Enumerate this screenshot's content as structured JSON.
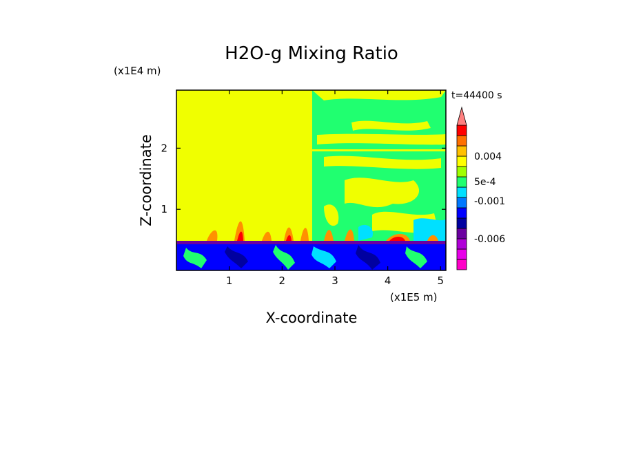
{
  "chart_data": {
    "type": "heatmap",
    "title": "H2O-g Mixing Ratio",
    "xlabel": "X-coordinate",
    "ylabel": "Z-coordinate",
    "x_scale_label": "(x1E5 m)",
    "y_scale_label": "(x1E4 m)",
    "time_label": "t=44400 s",
    "xlim": [
      0.0,
      5.1
    ],
    "ylim": [
      0.0,
      2.95
    ],
    "x_ticks": [
      1,
      2,
      3,
      4,
      5
    ],
    "y_ticks": [
      1,
      2
    ],
    "colorbar": {
      "levels": [
        {
          "color": "#ff00c8"
        },
        {
          "color": "#e800e8"
        },
        {
          "color": "#b000d8"
        },
        {
          "color": "#6a00a0"
        },
        {
          "color": "#0000a0"
        },
        {
          "color": "#0000ff"
        },
        {
          "color": "#0078ff"
        },
        {
          "color": "#00e0ff"
        },
        {
          "color": "#20ff70"
        },
        {
          "color": "#a0ff00"
        },
        {
          "color": "#ffff00"
        },
        {
          "color": "#ffc000"
        },
        {
          "color": "#ff7000"
        },
        {
          "color": "#ff0000"
        },
        {
          "color": "#ff8080"
        }
      ],
      "tick_labels": [
        "0.004",
        "5e-4",
        "-0.001",
        "-0.006"
      ]
    },
    "field_regions": [
      {
        "region": "upper-left domain",
        "value_class": "near zero",
        "color": "#f0ff00"
      },
      {
        "region": "upper-right domain",
        "value_class": "slightly negative",
        "color": "#20ff70"
      },
      {
        "region": "boundary layer (z < 0.5)",
        "value_class": "-0.001 to -0.003",
        "color": "#0000ff"
      },
      {
        "region": "plumes above boundary layer",
        "value_class": "0.001 to 0.004",
        "color": "#ff7000"
      }
    ]
  }
}
